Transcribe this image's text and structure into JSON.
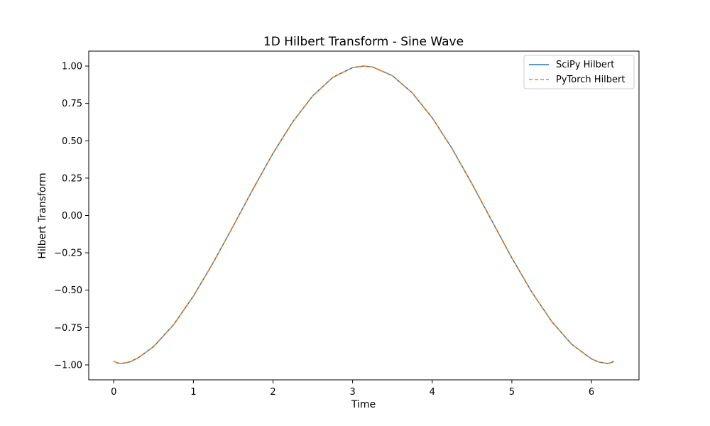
{
  "chart_data": {
    "type": "line",
    "title": "1D Hilbert Transform - Sine Wave",
    "xlabel": "Time",
    "ylabel": "Hilbert Transform",
    "xlim": [
      -0.314,
      6.597
    ],
    "ylim": [
      -1.1,
      1.1
    ],
    "xticks": [
      0,
      1,
      2,
      3,
      4,
      5,
      6
    ],
    "xtick_labels": [
      "0",
      "1",
      "2",
      "3",
      "4",
      "5",
      "6"
    ],
    "yticks": [
      -1.0,
      -0.75,
      -0.5,
      -0.25,
      0.0,
      0.25,
      0.5,
      0.75,
      1.0
    ],
    "ytick_labels": [
      "−1.00",
      "−0.75",
      "−0.50",
      "−0.25",
      "0.00",
      "0.25",
      "0.50",
      "0.75",
      "1.00"
    ],
    "grid": false,
    "legend_position": "top-right",
    "series": [
      {
        "name": "SciPy Hilbert",
        "color": "#1f77b4",
        "style": "solid",
        "x": [
          0.0,
          0.05,
          0.1,
          0.2,
          0.3,
          0.5,
          0.75,
          1.0,
          1.25,
          1.5,
          1.75,
          2.0,
          2.25,
          2.5,
          2.75,
          3.0,
          3.14159,
          3.25,
          3.5,
          3.75,
          4.0,
          4.25,
          4.5,
          4.75,
          5.0,
          5.25,
          5.5,
          5.75,
          6.0,
          6.1,
          6.2,
          6.23,
          6.283
        ],
        "y": [
          -0.975,
          -0.988,
          -0.99,
          -0.98,
          -0.955,
          -0.878,
          -0.732,
          -0.54,
          -0.315,
          -0.071,
          0.178,
          0.416,
          0.628,
          0.801,
          0.924,
          0.99,
          1.0,
          0.994,
          0.936,
          0.82,
          0.654,
          0.447,
          0.211,
          -0.037,
          -0.284,
          -0.512,
          -0.709,
          -0.861,
          -0.96,
          -0.982,
          -0.99,
          -0.988,
          -0.976
        ]
      },
      {
        "name": "PyTorch Hilbert",
        "color": "#ff7f0e",
        "style": "dashed",
        "x": [
          0.0,
          0.05,
          0.1,
          0.2,
          0.3,
          0.5,
          0.75,
          1.0,
          1.25,
          1.5,
          1.75,
          2.0,
          2.25,
          2.5,
          2.75,
          3.0,
          3.14159,
          3.25,
          3.5,
          3.75,
          4.0,
          4.25,
          4.5,
          4.75,
          5.0,
          5.25,
          5.5,
          5.75,
          6.0,
          6.1,
          6.2,
          6.23,
          6.283
        ],
        "y": [
          -0.975,
          -0.988,
          -0.99,
          -0.98,
          -0.955,
          -0.878,
          -0.732,
          -0.54,
          -0.315,
          -0.071,
          0.178,
          0.416,
          0.628,
          0.801,
          0.924,
          0.99,
          1.0,
          0.994,
          0.936,
          0.82,
          0.654,
          0.447,
          0.211,
          -0.037,
          -0.284,
          -0.512,
          -0.709,
          -0.861,
          -0.96,
          -0.982,
          -0.99,
          -0.988,
          -0.976
        ]
      }
    ]
  }
}
